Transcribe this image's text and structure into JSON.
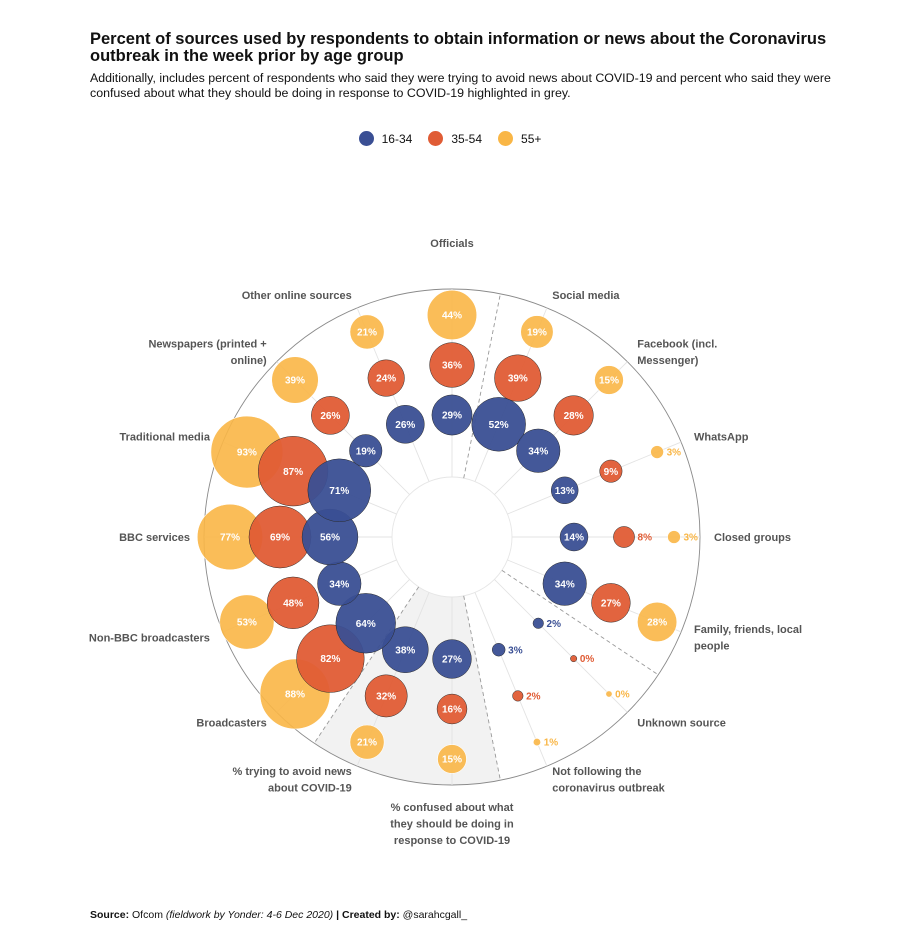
{
  "header": {
    "title": "Percent of sources used by respondents to obtain information or news about the Coronavirus outbreak in the week prior by age group",
    "subtitle": "Additionally, includes percent of respondents who said they were trying to avoid news about COVID-19 and percent who said they were confused about what they should be doing in response to COVID-19 highlighted in grey."
  },
  "legend": [
    {
      "label": "16-34",
      "color": "#3a4f94"
    },
    {
      "label": "35-54",
      "color": "#e05c35"
    },
    {
      "label": "55+",
      "color": "#f9b646"
    }
  ],
  "footer": {
    "source_label": "Source:",
    "source": "Ofcom",
    "fieldwork": "(fieldwork by Yonder: 4-6 Dec 2020)",
    "sep": "|",
    "created_label": "Created by:",
    "author": "@sarahcgall_"
  },
  "chart_data": {
    "type": "radial bubble",
    "series": [
      {
        "name": "16-34",
        "color": "#3a4f94"
      },
      {
        "name": "35-54",
        "color": "#e05c35"
      },
      {
        "name": "55+",
        "color": "#f9b646"
      }
    ],
    "highlighted_categories": [
      "% trying to avoid news about COVID-19",
      "% confused about what they should be doing in response to COVID-19"
    ],
    "highlight_color": "#f2f2f2",
    "categories": [
      {
        "name": "Officials",
        "label_lines": [
          "Officials"
        ],
        "values": [
          29,
          36,
          44
        ]
      },
      {
        "name": "Social media",
        "label_lines": [
          "Social media"
        ],
        "values": [
          52,
          39,
          19
        ]
      },
      {
        "name": "Facebook (incl. Messenger)",
        "label_lines": [
          "Facebook (incl.",
          "Messenger)"
        ],
        "values": [
          34,
          28,
          15
        ]
      },
      {
        "name": "WhatsApp",
        "label_lines": [
          "WhatsApp"
        ],
        "values": [
          13,
          9,
          3
        ]
      },
      {
        "name": "Closed groups",
        "label_lines": [
          "Closed groups"
        ],
        "values": [
          14,
          8,
          3
        ]
      },
      {
        "name": "Family, friends, local people",
        "label_lines": [
          "Family, friends, local",
          "people"
        ],
        "values": [
          34,
          27,
          28
        ]
      },
      {
        "name": "Unknown source",
        "label_lines": [
          "Unknown source"
        ],
        "values": [
          2,
          0,
          0
        ]
      },
      {
        "name": "Not following the coronavirus outbreak",
        "label_lines": [
          "Not following the",
          "coronavirus outbreak"
        ],
        "values": [
          3,
          2,
          1
        ]
      },
      {
        "name": "% confused about what they should be doing in response to COVID-19",
        "label_lines": [
          "% confused about what",
          "they should be doing in",
          "response to COVID-19"
        ],
        "values": [
          27,
          16,
          15
        ]
      },
      {
        "name": "% trying to avoid news about COVID-19",
        "label_lines": [
          "% trying to avoid news",
          "about COVID-19"
        ],
        "values": [
          38,
          32,
          21
        ]
      },
      {
        "name": "Broadcasters",
        "label_lines": [
          "Broadcasters"
        ],
        "values": [
          64,
          82,
          88
        ]
      },
      {
        "name": "Non-BBC broadcasters",
        "label_lines": [
          "Non-BBC broadcasters"
        ],
        "values": [
          34,
          48,
          53
        ]
      },
      {
        "name": "BBC services",
        "label_lines": [
          "BBC services"
        ],
        "values": [
          56,
          69,
          77
        ]
      },
      {
        "name": "Traditional media",
        "label_lines": [
          "Traditional media"
        ],
        "values": [
          71,
          87,
          93
        ]
      },
      {
        "name": "Newspapers (printed + online)",
        "label_lines": [
          "Newspapers (printed +",
          "online)"
        ],
        "values": [
          19,
          26,
          39
        ]
      },
      {
        "name": "Other online sources",
        "label_lines": [
          "Other online sources"
        ],
        "values": [
          26,
          24,
          21
        ]
      }
    ],
    "value_suffix": "%"
  }
}
